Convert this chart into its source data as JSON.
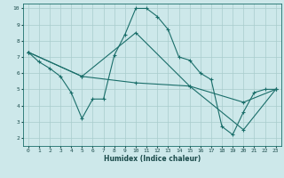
{
  "xlabel": "Humidex (Indice chaleur)",
  "ylabel": "",
  "background_color": "#cde8ea",
  "grid_color": "#a8cccc",
  "line_color": "#1a6e6a",
  "xlim": [
    -0.5,
    23.5
  ],
  "ylim": [
    1.5,
    10.3
  ],
  "xticks": [
    0,
    1,
    2,
    3,
    4,
    5,
    6,
    7,
    8,
    9,
    10,
    11,
    12,
    13,
    14,
    15,
    16,
    17,
    18,
    19,
    20,
    21,
    22,
    23
  ],
  "yticks": [
    2,
    3,
    4,
    5,
    6,
    7,
    8,
    9,
    10
  ],
  "series": [
    {
      "x": [
        0,
        1,
        2,
        3,
        4,
        5,
        6,
        7,
        8,
        9,
        10,
        11,
        12,
        13,
        14,
        15,
        16,
        17,
        18,
        19,
        20,
        21,
        22,
        23
      ],
      "y": [
        7.3,
        6.7,
        6.3,
        5.8,
        4.8,
        3.2,
        4.4,
        4.4,
        7.1,
        8.4,
        10.0,
        10.0,
        9.5,
        8.7,
        7.0,
        6.8,
        6.0,
        5.6,
        2.7,
        2.2,
        3.6,
        4.8,
        5.0,
        5.0
      ]
    },
    {
      "x": [
        0,
        5,
        10,
        15,
        20,
        23
      ],
      "y": [
        7.3,
        5.8,
        8.5,
        5.2,
        2.5,
        5.0
      ]
    },
    {
      "x": [
        0,
        5,
        10,
        15,
        20,
        23
      ],
      "y": [
        7.3,
        5.8,
        5.4,
        5.2,
        4.2,
        5.0
      ]
    }
  ]
}
